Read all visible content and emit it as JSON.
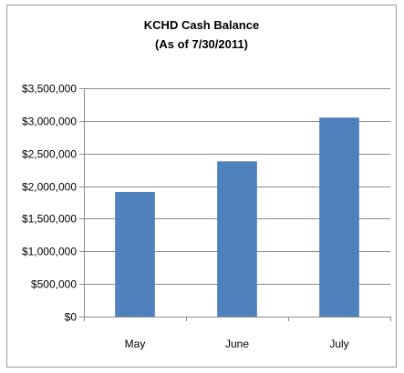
{
  "chart_data": {
    "type": "bar",
    "title": "KCHD Cash Balance",
    "subtitle": "(As of 7/30/2011)",
    "categories": [
      "May",
      "June",
      "July"
    ],
    "values": [
      1910000,
      2380000,
      3050000
    ],
    "ylim": [
      0,
      3500000
    ],
    "yticks": [
      0,
      500000,
      1000000,
      1500000,
      2000000,
      2500000,
      3000000,
      3500000
    ],
    "ytick_labels": [
      "$0",
      "$500,000",
      "$1,000,000",
      "$1,500,000",
      "$2,000,000",
      "$2,500,000",
      "$3,000,000",
      "$3,500,000"
    ],
    "xlabel": "",
    "ylabel": "",
    "grid": true,
    "legend": "none",
    "bar_color": "#4f81bd",
    "grid_color": "#8c8c8c"
  }
}
